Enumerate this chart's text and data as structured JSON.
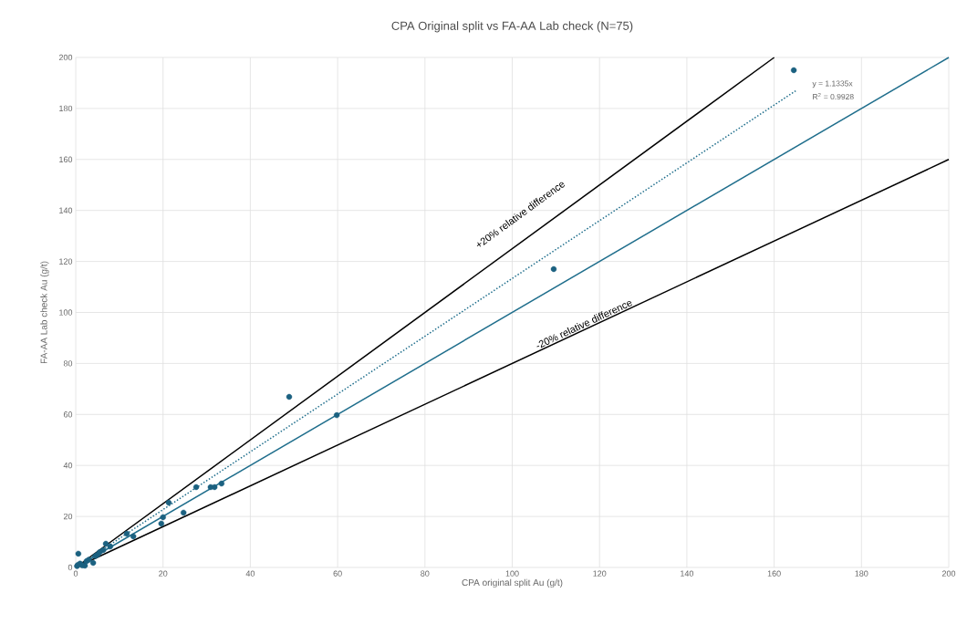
{
  "chart_data": {
    "type": "scatter",
    "title": "CPA Original split vs FA-AA Lab check (N=75)",
    "xlabel": "CPA original split Au (g/t)",
    "ylabel": "FA-AA Lab check Au (g/t)",
    "xlim": [
      0,
      200
    ],
    "ylim": [
      0,
      200
    ],
    "xticks": [
      0,
      20,
      40,
      60,
      80,
      100,
      120,
      140,
      160,
      180,
      200
    ],
    "yticks": [
      0,
      20,
      40,
      60,
      80,
      100,
      120,
      140,
      160,
      180,
      200
    ],
    "grid": true,
    "series": [
      {
        "color": "#1b6180",
        "marker": "circle",
        "x": [
          164.5,
          109.5,
          48.9,
          59.8,
          33.4,
          31.8,
          30.9,
          27.6,
          21.3,
          20,
          19.6,
          24.7,
          0.6,
          11.7,
          13.2,
          6.9,
          7.9,
          6.3,
          4.0,
          2.1,
          0.3,
          0.5,
          1.0,
          1.5,
          2.5,
          3.0,
          4.5,
          5.0,
          5.5
        ],
        "values": [
          195,
          117,
          66.9,
          59.7,
          32.9,
          31.5,
          31.5,
          31.5,
          25.4,
          19.7,
          17.2,
          21.5,
          5.4,
          13.2,
          12.2,
          9.3,
          8.2,
          6.8,
          1.8,
          0.7,
          0.5,
          1.0,
          1.5,
          0.8,
          2.5,
          3.0,
          4.5,
          5.0,
          6.0
        ]
      },
      {
        "type": "line",
        "color": "#1f6e8c",
        "line_style": "solid",
        "marker": "none",
        "x": [
          0,
          200
        ],
        "values": [
          0,
          200
        ]
      },
      {
        "type": "line",
        "color": "#000000",
        "line_style": "solid",
        "marker": "none",
        "x": [
          0,
          160
        ],
        "values": [
          0,
          200
        ]
      },
      {
        "type": "line",
        "color": "#000000",
        "line_style": "solid",
        "marker": "none",
        "x": [
          0,
          200
        ],
        "values": [
          0,
          160
        ]
      },
      {
        "type": "line",
        "color": "#1f6e8c",
        "line_style": "dotted",
        "marker": "none",
        "x": [
          0,
          165
        ],
        "values": [
          0,
          187
        ]
      }
    ],
    "annotations": [
      "+20% relative difference",
      "-20% relative difference",
      "y = 1.1335x",
      "R$^{2}$ = 0.9928"
    ]
  }
}
